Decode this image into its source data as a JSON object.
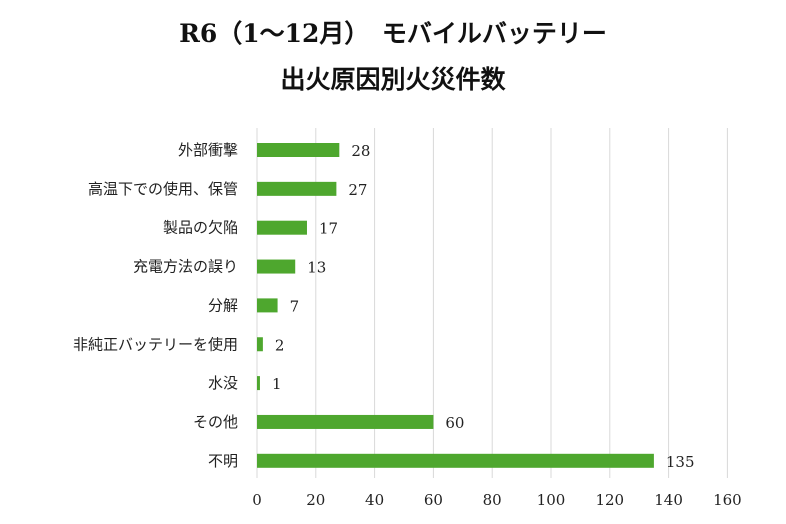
{
  "chart_data": {
    "type": "bar",
    "orientation": "horizontal",
    "title_line1": "R6（1～12月）　モバイルバッテリー",
    "title_line2": "出火原因別火災件数",
    "categories": [
      "外部衝撃",
      "高温下での使用、保管",
      "製品の欠陥",
      "充電方法の誤り",
      "分解",
      "非純正バッテリーを使用",
      "水没",
      "その他",
      "不明"
    ],
    "values": [
      28,
      27,
      17,
      13,
      7,
      2,
      1,
      60,
      135
    ],
    "xlim": [
      0,
      160
    ],
    "xticks": [
      0,
      20,
      40,
      60,
      80,
      100,
      120,
      140,
      160
    ],
    "grid": true,
    "bar_color": "#4ea72e",
    "grid_color": "#d9d9d9",
    "data_labels": true
  }
}
